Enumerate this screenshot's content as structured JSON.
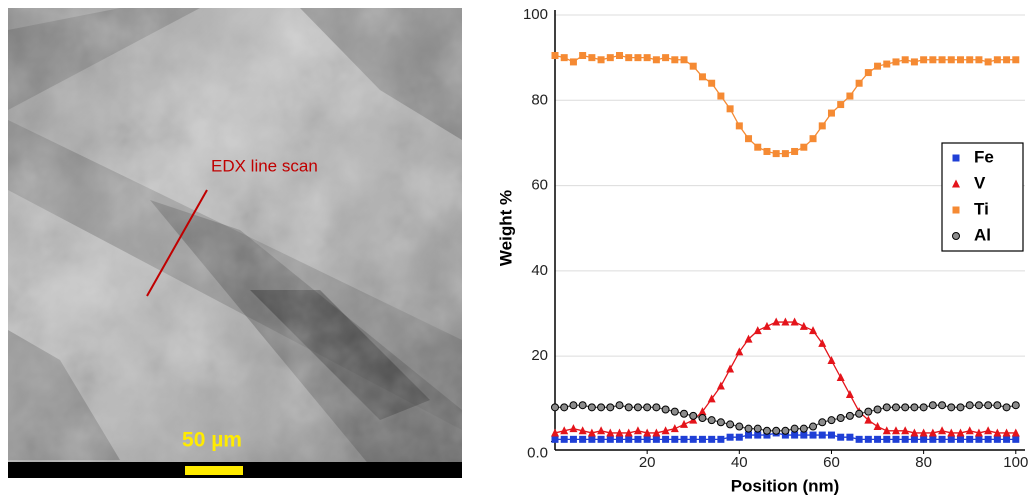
{
  "image": {
    "annotation": "EDX line scan",
    "scale_bar": "50 µm"
  },
  "chart_data": {
    "type": "line",
    "xlabel": "Position (nm)",
    "ylabel": "Weight %",
    "x": [
      0,
      2,
      4,
      6,
      8,
      10,
      12,
      14,
      16,
      18,
      20,
      22,
      24,
      26,
      28,
      30,
      32,
      34,
      36,
      38,
      40,
      42,
      44,
      46,
      48,
      50,
      52,
      54,
      56,
      58,
      60,
      62,
      64,
      66,
      68,
      70,
      72,
      74,
      76,
      78,
      80,
      82,
      84,
      86,
      88,
      90,
      92,
      94,
      96,
      98,
      100
    ],
    "xlim": [
      0,
      102
    ],
    "xticks": [
      20,
      40,
      60,
      80,
      100
    ],
    "ylim": [
      -2,
      100
    ],
    "yticks": [
      {
        "value": 0,
        "label": "0.0"
      },
      20,
      40,
      60,
      80,
      100
    ],
    "grid": true,
    "legend": "right",
    "series": [
      {
        "name": "Fe",
        "color": "#1f3fd6",
        "marker": "square",
        "values": [
          0.5,
          0.5,
          0.5,
          0.5,
          0.5,
          0.5,
          0.5,
          0.5,
          0.5,
          0.5,
          0.5,
          0.5,
          0.5,
          0.5,
          0.5,
          0.5,
          0.5,
          0.5,
          0.5,
          1,
          1,
          1.5,
          1.5,
          1.5,
          2,
          1.5,
          1.5,
          1.5,
          1.5,
          1.5,
          1.5,
          1,
          1,
          0.5,
          0.5,
          0.5,
          0.5,
          0.5,
          0.5,
          0.5,
          0.5,
          0.5,
          0.5,
          0.5,
          0.5,
          0.5,
          0.5,
          0.5,
          0.5,
          0.5,
          0.5
        ]
      },
      {
        "name": "V",
        "color": "#e4141b",
        "marker": "triangle",
        "values": [
          2,
          2.5,
          3,
          2.5,
          2,
          2.5,
          2,
          2,
          2,
          2.5,
          2,
          2,
          2.5,
          3,
          4,
          5,
          7,
          10,
          13,
          17,
          21,
          24,
          26,
          27,
          28,
          28,
          28,
          27,
          26,
          23,
          19,
          15,
          11,
          7,
          5,
          3.5,
          2.5,
          2.5,
          2.5,
          2,
          2,
          2,
          2.5,
          2,
          2,
          2.5,
          2,
          2.5,
          2,
          2,
          2
        ]
      },
      {
        "name": "Ti",
        "color": "#f58a33",
        "marker": "square",
        "values": [
          90.5,
          90,
          89,
          90.5,
          90,
          89.5,
          90,
          90.5,
          90,
          90,
          90,
          89.5,
          90,
          89.5,
          89.5,
          88,
          85.5,
          84,
          81,
          78,
          74,
          71,
          69,
          68,
          67.5,
          67.5,
          68,
          69,
          71,
          74,
          77,
          79,
          81,
          84,
          86.5,
          88,
          88.5,
          89,
          89.5,
          89,
          89.5,
          89.5,
          89.5,
          89.5,
          89.5,
          89.5,
          89.5,
          89,
          89.5,
          89.5,
          89.5
        ]
      },
      {
        "name": "Al",
        "color": "#8c8c8c",
        "marker": "circle",
        "values": [
          8,
          8,
          8.5,
          8.5,
          8,
          8,
          8,
          8.5,
          8,
          8,
          8,
          8,
          7.5,
          7,
          6.5,
          6,
          5.5,
          5,
          4.5,
          4,
          3.5,
          3,
          3,
          2.5,
          2.5,
          2.5,
          3,
          3,
          3.5,
          4.5,
          5,
          5.5,
          6,
          6.5,
          7,
          7.5,
          8,
          8,
          8,
          8,
          8,
          8.5,
          8.5,
          8,
          8,
          8.5,
          8.5,
          8.5,
          8.5,
          8,
          8.5
        ]
      }
    ]
  }
}
